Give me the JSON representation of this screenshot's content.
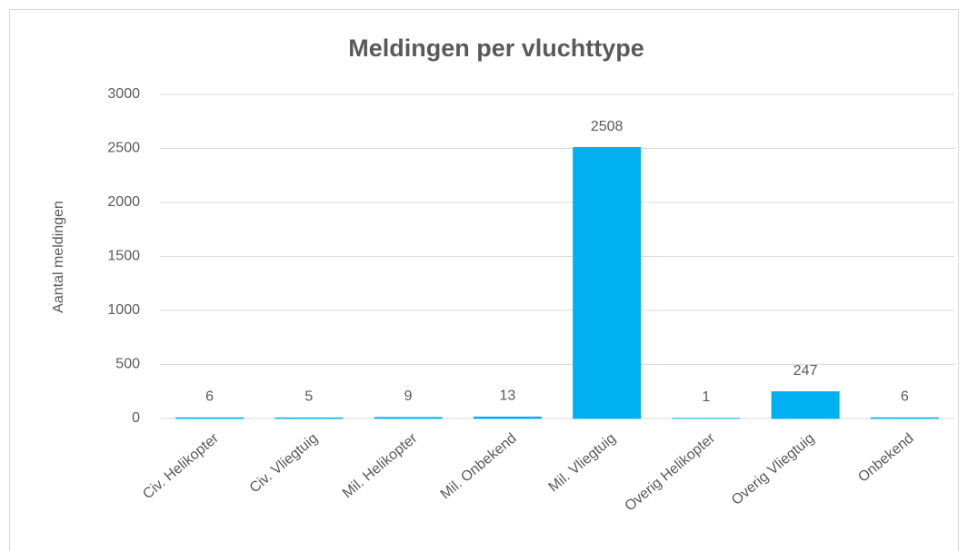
{
  "chart_data": {
    "type": "bar",
    "title": "Meldingen per vluchttype",
    "y_label": "Aantal meldingen",
    "categories": [
      "Civ. Helikopter",
      "Civ. Vliegtuig",
      "Mil. Helikopter",
      "Mil. Onbekend",
      "Mil. Vliegtuig",
      "Overig Helikopter",
      "Overig Vliegtuig",
      "Onbekend"
    ],
    "values": [
      6,
      5,
      9,
      13,
      2508,
      1,
      247,
      6
    ],
    "color": "#00b0f0",
    "ylim": [
      0,
      3000
    ],
    "yticks": [
      0,
      500,
      1000,
      1500,
      2000,
      2500,
      3000
    ],
    "grid": true
  }
}
